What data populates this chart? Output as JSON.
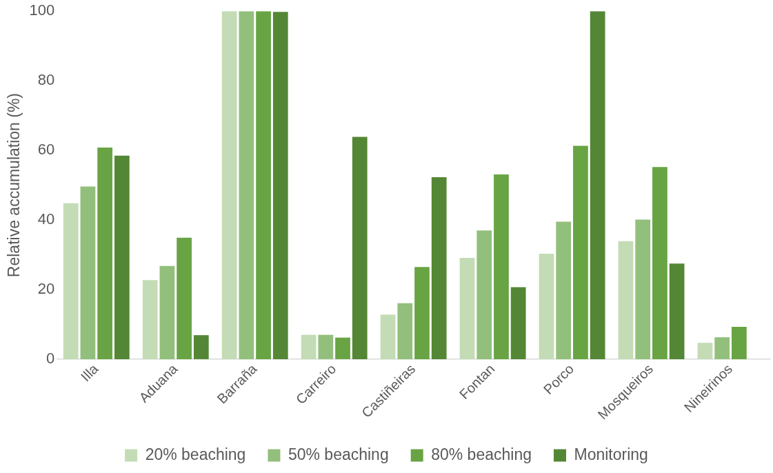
{
  "chart_data": {
    "type": "bar",
    "ylabel": "Relative accumulation (%)",
    "categories": [
      "Illa",
      "Aduana",
      "Barraña",
      "Carreiro",
      "Castiñeiras",
      "Fontan",
      "Porco",
      "Mosqueiros",
      "Nineirinos"
    ],
    "series": [
      {
        "name": "20% beaching",
        "color": "#c3dcb5",
        "values": [
          44.8,
          22.7,
          100,
          7,
          12.8,
          29.1,
          30.3,
          33.9,
          4.7
        ]
      },
      {
        "name": "50% beaching",
        "color": "#93bf7c",
        "values": [
          49.6,
          26.8,
          100,
          7,
          16.1,
          37,
          39.5,
          40.1,
          6.3
        ]
      },
      {
        "name": "80% beaching",
        "color": "#68a443",
        "values": [
          60.8,
          34.9,
          100,
          6.2,
          26.5,
          53.1,
          61.3,
          55.2,
          9.3
        ]
      },
      {
        "name": "Monitoring",
        "color": "#548735",
        "values": [
          58.5,
          6.9,
          99.8,
          63.9,
          52.3,
          20.7,
          100,
          27.5,
          null
        ]
      }
    ],
    "ylim": [
      0,
      100
    ],
    "yticks": [
      0,
      20,
      40,
      60,
      80,
      100
    ],
    "grid": false,
    "legend": "bottom"
  }
}
